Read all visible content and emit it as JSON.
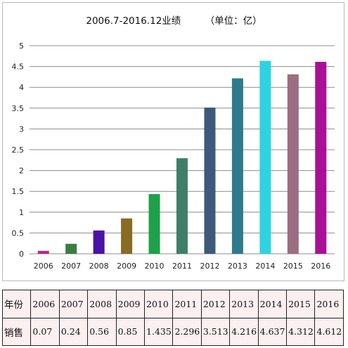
{
  "chart_data": {
    "type": "bar",
    "title": "2006.7-2016.12业绩        （单位：亿）",
    "xlabel": "",
    "ylabel": "",
    "categories": [
      "2006",
      "2007",
      "2008",
      "2009",
      "2010",
      "2011",
      "2012",
      "2013",
      "2014",
      "2015",
      "2016"
    ],
    "values": [
      0.07,
      0.24,
      0.56,
      0.85,
      1.435,
      2.296,
      3.513,
      4.216,
      4.637,
      4.312,
      4.612
    ],
    "ylim": [
      0,
      5
    ],
    "yticks": [
      "0",
      "0.5",
      "1",
      "1.5",
      "2",
      "2.5",
      "3",
      "3.5",
      "4",
      "4.5",
      "5"
    ],
    "grid": true,
    "bar_colors": [
      "#c0208c",
      "#3a7d44",
      "#4b12a6",
      "#8a6b24",
      "#1fa04a",
      "#3f7f6a",
      "#3d5a78",
      "#2f7a8c",
      "#2fd3e0",
      "#9a6e80",
      "#a81096"
    ]
  },
  "table": {
    "row_year_label": "年份",
    "row_sales_label": "销售",
    "years": [
      "2006",
      "2007",
      "2008",
      "2009",
      "2010",
      "2011",
      "2012",
      "2013",
      "2014",
      "2015",
      "2016"
    ],
    "sales": [
      "0.07",
      "0.24",
      "0.56",
      "0.85",
      "1.435",
      "2.296",
      "3.513",
      "4.216",
      "4.637",
      "4.312",
      "4.612"
    ]
  }
}
